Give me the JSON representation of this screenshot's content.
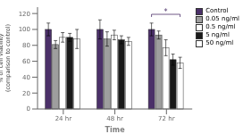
{
  "chart_data": {
    "type": "bar",
    "categories": [
      "24 hr",
      "48 hr",
      "72 hr"
    ],
    "series": [
      {
        "name": "Control",
        "color": "#4B3069",
        "values": [
          100,
          100,
          100
        ],
        "errors": [
          8,
          12,
          8
        ]
      },
      {
        "name": "0.05 ng/ml",
        "color": "#9E9E9E",
        "values": [
          81,
          88,
          93
        ],
        "errors": [
          5,
          9,
          5
        ]
      },
      {
        "name": "0.5 ng/ml",
        "color": "#FFFFFF",
        "values": [
          90,
          93,
          77
        ],
        "errors": [
          6,
          6,
          10
        ]
      },
      {
        "name": "5 ng/ml",
        "color": "#1A1A1A",
        "values": [
          90,
          87,
          62
        ],
        "errors": [
          5,
          5,
          7
        ]
      },
      {
        "name": "50 ng/ml",
        "color": "#FFFFFF",
        "values": [
          88,
          85,
          58
        ],
        "errors": [
          12,
          5,
          7
        ]
      }
    ],
    "xlabel": "Time",
    "ylabel": "% of cell viability\n(comparison to control)",
    "ylim": [
      0,
      128
    ],
    "yticks": [
      0,
      20,
      40,
      60,
      80,
      100,
      120
    ],
    "legend": "upper right",
    "annotations": [
      {
        "text": "*",
        "category": "72 hr",
        "from": "Control",
        "to": "50 ng/ml",
        "y": 119,
        "color": "#4B3069"
      }
    ]
  }
}
